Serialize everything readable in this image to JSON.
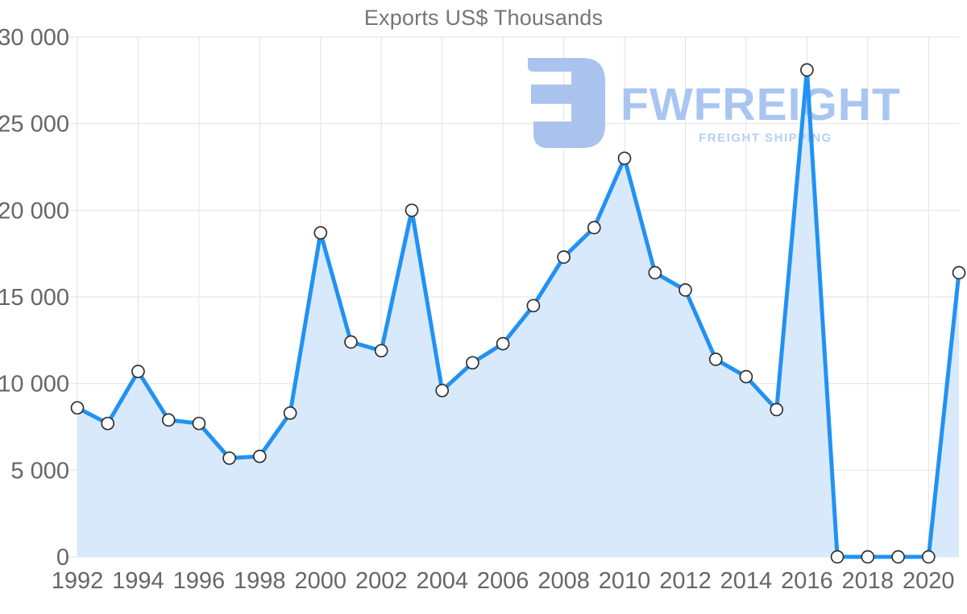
{
  "watermark": {
    "brand": "FWFREIGHT",
    "tagline": "FREIGHT SHIPPING",
    "icon": "fwfreight-logo-icon",
    "brand_color": "#a9c5f1",
    "tagline_color": "#b6cff4",
    "icon_color": "#a9c3ee"
  },
  "chart_data": {
    "type": "area",
    "title": "Exports US$ Thousands",
    "series_name": "Exports US$ Thousands",
    "x": [
      1992,
      1993,
      1994,
      1995,
      1996,
      1997,
      1998,
      1999,
      2000,
      2001,
      2002,
      2003,
      2004,
      2005,
      2006,
      2007,
      2008,
      2009,
      2010,
      2011,
      2012,
      2013,
      2014,
      2015,
      2016,
      2017,
      2018,
      2019,
      2020,
      2021
    ],
    "values": [
      8600,
      7700,
      10700,
      7900,
      7700,
      5700,
      5800,
      8300,
      18700,
      12400,
      11900,
      20000,
      9600,
      11200,
      12300,
      14500,
      17300,
      19000,
      23000,
      16400,
      15400,
      11400,
      10400,
      8500,
      28100,
      0,
      0,
      0,
      0,
      16400
    ],
    "xlabel": "",
    "ylabel": "",
    "ylim": [
      0,
      30000
    ],
    "y_ticks": [
      0,
      5000,
      10000,
      15000,
      20000,
      25000,
      30000
    ],
    "y_tick_labels": [
      "0",
      "5 000",
      "10 000",
      "15 000",
      "20 000",
      "25 000",
      "30 000"
    ],
    "x_ticks": [
      1992,
      1994,
      1996,
      1998,
      2000,
      2002,
      2004,
      2006,
      2008,
      2010,
      2012,
      2014,
      2016,
      2018,
      2020
    ],
    "grid": true,
    "legend": "none",
    "marker": "circle-white-outline",
    "colors": {
      "line": "#2192f3",
      "fill": "#d9e9fc",
      "grid": "#e2e2e2",
      "axis_text": "#666666",
      "title_text": "#757575",
      "marker_fill": "#ffffff",
      "marker_stroke": "#2f2f2f"
    }
  }
}
